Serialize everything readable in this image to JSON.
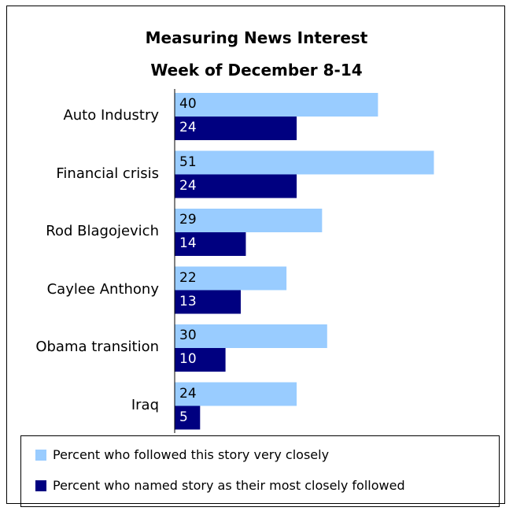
{
  "chart_data": {
    "type": "bar",
    "orientation": "horizontal",
    "title": "Measuring News Interest",
    "subtitle": "Week of December 8-14",
    "categories": [
      "Auto Industry",
      "Financial crisis",
      "Rod Blagojevich",
      "Caylee Anthony",
      "Obama transition",
      "Iraq"
    ],
    "series": [
      {
        "name": "Percent who followed this story very closely",
        "values": [
          40,
          51,
          29,
          22,
          30,
          24
        ],
        "color": "#99ccff"
      },
      {
        "name": "Percent who named story as their most closely followed",
        "values": [
          24,
          24,
          14,
          13,
          10,
          5
        ],
        "color": "#000080"
      }
    ],
    "xlim": [
      0,
      100
    ],
    "grid": false,
    "legend_position": "bottom"
  }
}
